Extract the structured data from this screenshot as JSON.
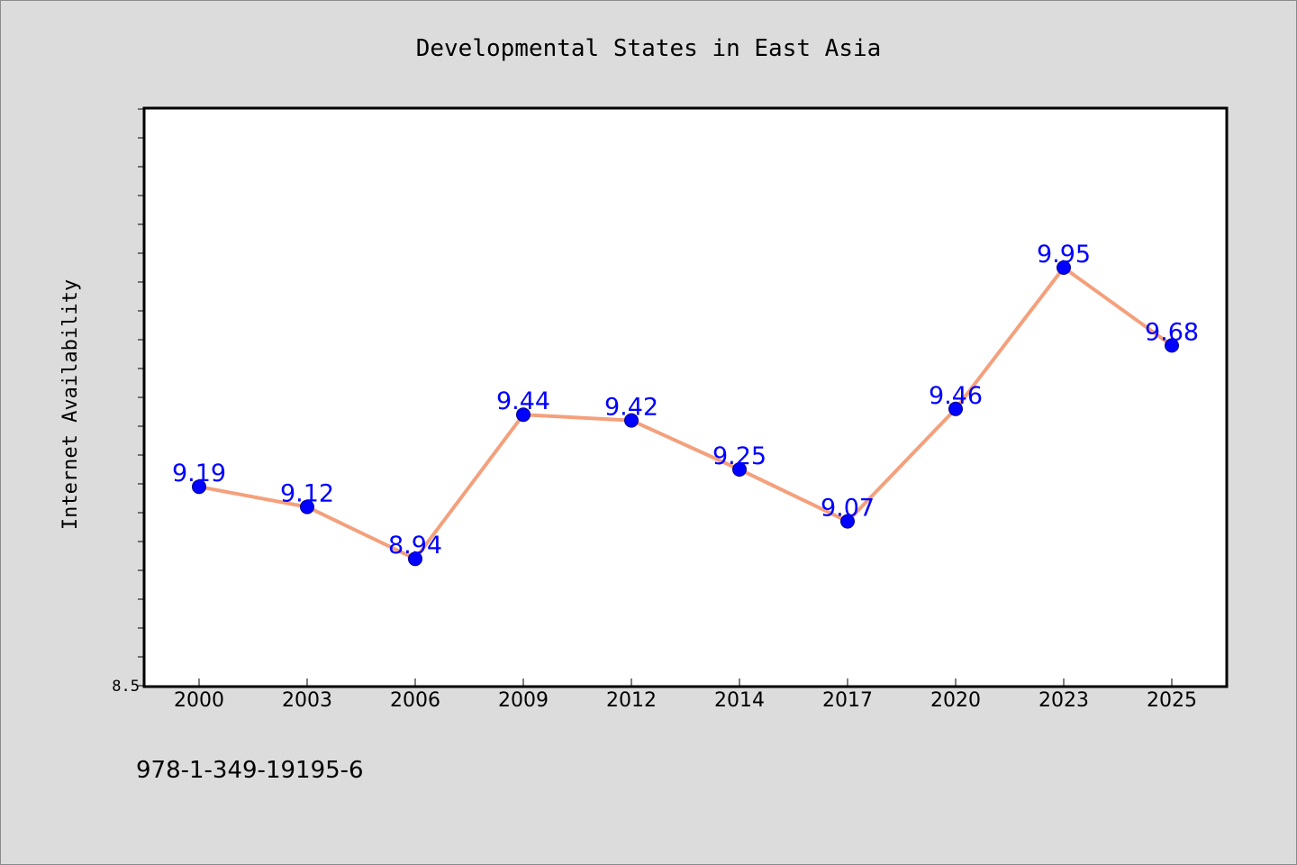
{
  "chart_data": {
    "type": "line",
    "title": "Developmental States in East Asia",
    "xlabel": "",
    "ylabel": "Internet Availability",
    "categories": [
      "2000",
      "2003",
      "2006",
      "2009",
      "2012",
      "2014",
      "2017",
      "2020",
      "2023",
      "2025"
    ],
    "series": [
      {
        "values": [
          9.19,
          9.12,
          8.94,
          9.44,
          9.42,
          9.25,
          9.07,
          9.46,
          9.95,
          9.68
        ],
        "data_labels": [
          "9.19",
          "9.12",
          "8.94",
          "9.44",
          "9.42",
          "9.25",
          "9.07",
          "9.46",
          "9.95",
          "9.68"
        ],
        "line_color": "#f4a07c",
        "marker_color": "#0000ff",
        "label_color": "#0000ff"
      }
    ],
    "ylim": [
      8.5,
      10.5
    ],
    "y_tick_labels": [
      "8.5"
    ],
    "grid": false,
    "legend": "none"
  },
  "footer": {
    "isbn": "978-1-349-19195-6"
  },
  "colors": {
    "background": "#dcdcdc",
    "plot_background": "#ffffff",
    "axis": "#000000"
  }
}
